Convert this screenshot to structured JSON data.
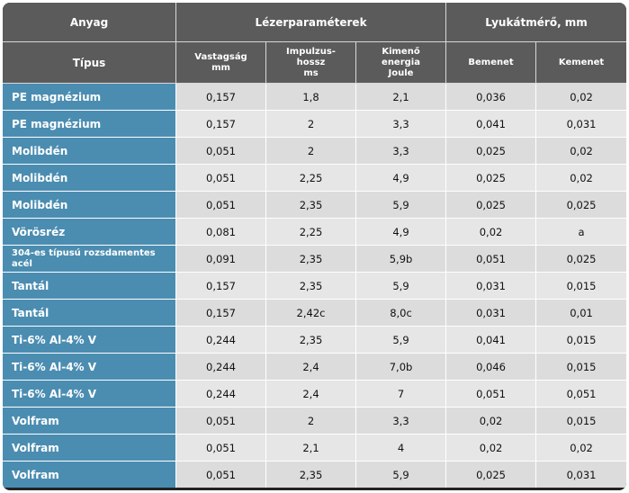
{
  "header": {
    "anyag": "Anyag",
    "laser_params": "Lézerparaméterek",
    "hole_diameter": "Lyukátmérő, mm",
    "tipus": "Típus",
    "thickness_line1": "Vastagság",
    "thickness_line2": "mm",
    "pulse_line1": "Impulzus-",
    "pulse_line2": "hossz",
    "pulse_line3": "ms",
    "energy_line1": "Kimenő",
    "energy_line2": "energia",
    "energy_line3": "Joule",
    "entry": "Bemenet",
    "exit": "Kemenet"
  },
  "rows": [
    {
      "type": "PE magnézium",
      "thickness": "0,157",
      "pulse": "1,8",
      "energy": "2,1",
      "entry": "0,036",
      "exit": "0,02"
    },
    {
      "type": "PE magnézium",
      "thickness": "0,157",
      "pulse": "2",
      "energy": "3,3",
      "entry": "0,041",
      "exit": "0,031"
    },
    {
      "type": "Molibdén",
      "thickness": "0,051",
      "pulse": "2",
      "energy": "3,3",
      "entry": "0,025",
      "exit": "0,02"
    },
    {
      "type": "Molibdén",
      "thickness": "0,051",
      "pulse": "2,25",
      "energy": "4,9",
      "entry": "0,025",
      "exit": "0,02"
    },
    {
      "type": "Molibdén",
      "thickness": "0,051",
      "pulse": "2,35",
      "energy": "5,9",
      "entry": "0,025",
      "exit": "0,025"
    },
    {
      "type": "Vörösréz",
      "thickness": "0,081",
      "pulse": "2,25",
      "energy": "4,9",
      "entry": "0,02",
      "exit": "a"
    },
    {
      "type_line1": "304-es típusú rozsdamentes",
      "type_line2": "acél",
      "thickness": "0,091",
      "pulse": "2,35",
      "energy": "5,9b",
      "entry": "0,051",
      "exit": "0,025"
    },
    {
      "type": "Tantál",
      "thickness": "0,157",
      "pulse": "2,35",
      "energy": "5,9",
      "entry": "0,031",
      "exit": "0,015"
    },
    {
      "type": "Tantál",
      "thickness": "0,157",
      "pulse": "2,42c",
      "energy": "8,0c",
      "entry": "0,031",
      "exit": "0,01"
    },
    {
      "type": "Ti-6% Al-4% V",
      "thickness": "0,244",
      "pulse": "2,35",
      "energy": "5,9",
      "entry": "0,041",
      "exit": "0,015"
    },
    {
      "type": "Ti-6% Al-4% V",
      "thickness": "0,244",
      "pulse": "2,4",
      "energy": "7,0b",
      "entry": "0,046",
      "exit": "0,015"
    },
    {
      "type": "Ti-6% Al-4% V",
      "thickness": "0,244",
      "pulse": "2,4",
      "energy": "7",
      "entry": "0,051",
      "exit": "0,051"
    },
    {
      "type": "Volfram",
      "thickness": "0,051",
      "pulse": "2",
      "energy": "3,3",
      "entry": "0,02",
      "exit": "0,015"
    },
    {
      "type": "Volfram",
      "thickness": "0,051",
      "pulse": "2,1",
      "energy": "4",
      "entry": "0,02",
      "exit": "0,02"
    },
    {
      "type": "Volfram",
      "thickness": "0,051",
      "pulse": "2,35",
      "energy": "5,9",
      "entry": "0,025",
      "exit": "0,031"
    }
  ],
  "colors": {
    "header_bg": "#5b5b5b",
    "type_bg": "#4b8db1",
    "cell_bg_odd": "#dcdcdc",
    "cell_bg_even": "#e6e6e6"
  }
}
